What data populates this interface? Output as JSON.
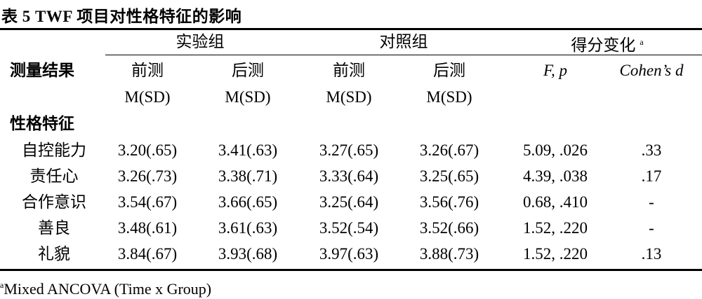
{
  "caption": "表 5  TWF   项目对性格特征的影响",
  "groups": {
    "experimental": "实验组",
    "control": "对照组",
    "change": "得分变化",
    "change_sup": "a"
  },
  "columns": {
    "measure": "测量结果",
    "exp_pre": "前测",
    "exp_post": "后测",
    "ctl_pre": "前测",
    "ctl_post": "后测",
    "fp": "F, p",
    "cohen": "Cohen’s d"
  },
  "subheaders": {
    "exp_pre": "M(SD)",
    "exp_post": "M(SD)",
    "ctl_pre": "M(SD)",
    "ctl_post": "M(SD)"
  },
  "section": "性格特征",
  "rows": [
    {
      "label": "自控能力",
      "exp_pre": "3.20(.65)",
      "exp_post": "3.41(.63)",
      "ctl_pre": "3.27(.65)",
      "ctl_post": "3.26(.67)",
      "fp": "5.09, .026",
      "d": ".33"
    },
    {
      "label": "责任心",
      "exp_pre": "3.26(.73)",
      "exp_post": "3.38(.71)",
      "ctl_pre": "3.33(.64)",
      "ctl_post": "3.25(.65)",
      "fp": "4.39, .038",
      "d": ".17"
    },
    {
      "label": "合作意识",
      "exp_pre": "3.54(.67)",
      "exp_post": "3.66(.65)",
      "ctl_pre": "3.25(.64)",
      "ctl_post": "3.56(.76)",
      "fp": "0.68, .410",
      "d": "-"
    },
    {
      "label": "善良",
      "exp_pre": "3.48(.61)",
      "exp_post": "3.61(.63)",
      "ctl_pre": "3.52(.54)",
      "ctl_post": "3.52(.66)",
      "fp": "1.52, .220",
      "d": "-"
    },
    {
      "label": "礼貌",
      "exp_pre": "3.84(.67)",
      "exp_post": "3.93(.68)",
      "ctl_pre": "3.97(.63)",
      "ctl_post": "3.88(.73)",
      "fp": "1.52, .220",
      "d": ".13"
    }
  ],
  "footnote": {
    "sup": "a",
    "text": "Mixed ANCOVA (Time x Group)"
  }
}
